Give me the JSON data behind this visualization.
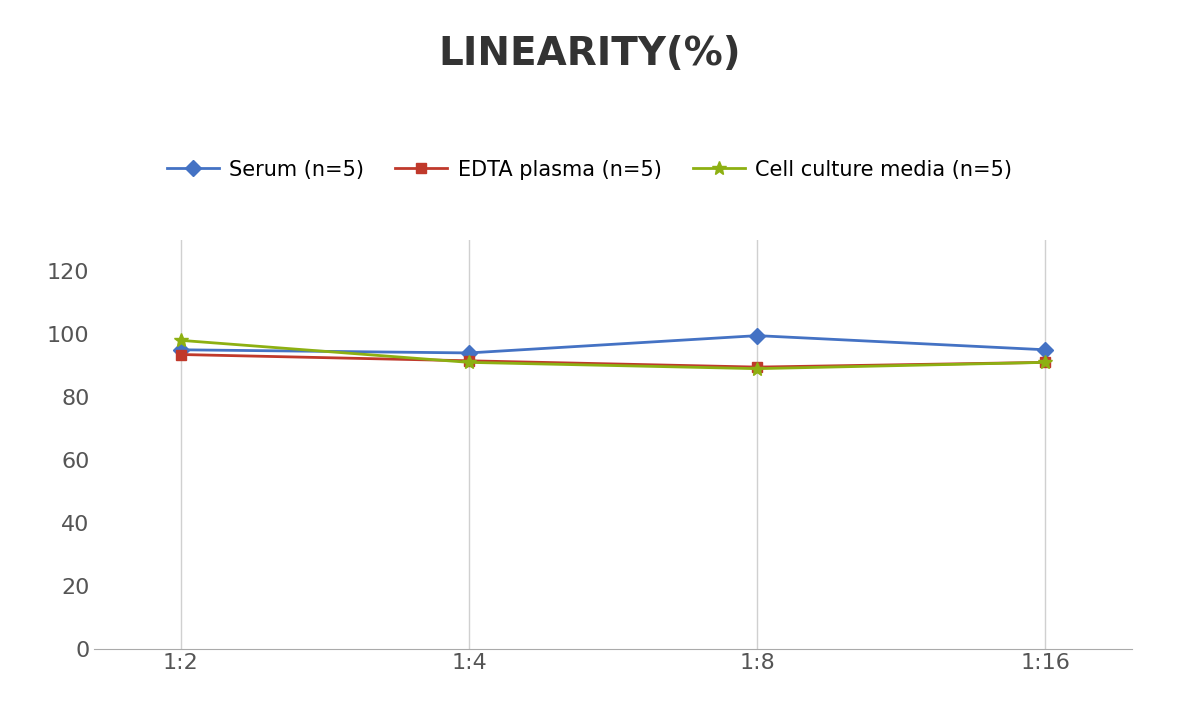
{
  "title": "LINEARITY(%)",
  "x_labels": [
    "1:2",
    "1:4",
    "1:8",
    "1:16"
  ],
  "x_positions": [
    0,
    1,
    2,
    3
  ],
  "series": [
    {
      "label": "Serum (n=5)",
      "values": [
        95,
        94,
        99.5,
        95
      ],
      "color": "#4472C4",
      "marker": "D",
      "markersize": 8,
      "linewidth": 2
    },
    {
      "label": "EDTA plasma (n=5)",
      "values": [
        93.5,
        91.5,
        89.5,
        91
      ],
      "color": "#C0392B",
      "marker": "s",
      "markersize": 7,
      "linewidth": 2
    },
    {
      "label": "Cell culture media (n=5)",
      "values": [
        98,
        91,
        89,
        91
      ],
      "color": "#8DB012",
      "marker": "*",
      "markersize": 10,
      "linewidth": 2
    }
  ],
  "ylim": [
    0,
    130
  ],
  "yticks": [
    0,
    20,
    40,
    60,
    80,
    100,
    120
  ],
  "background_color": "#ffffff",
  "grid_color": "#d0d0d0",
  "title_fontsize": 28,
  "tick_fontsize": 16,
  "legend_fontsize": 15
}
